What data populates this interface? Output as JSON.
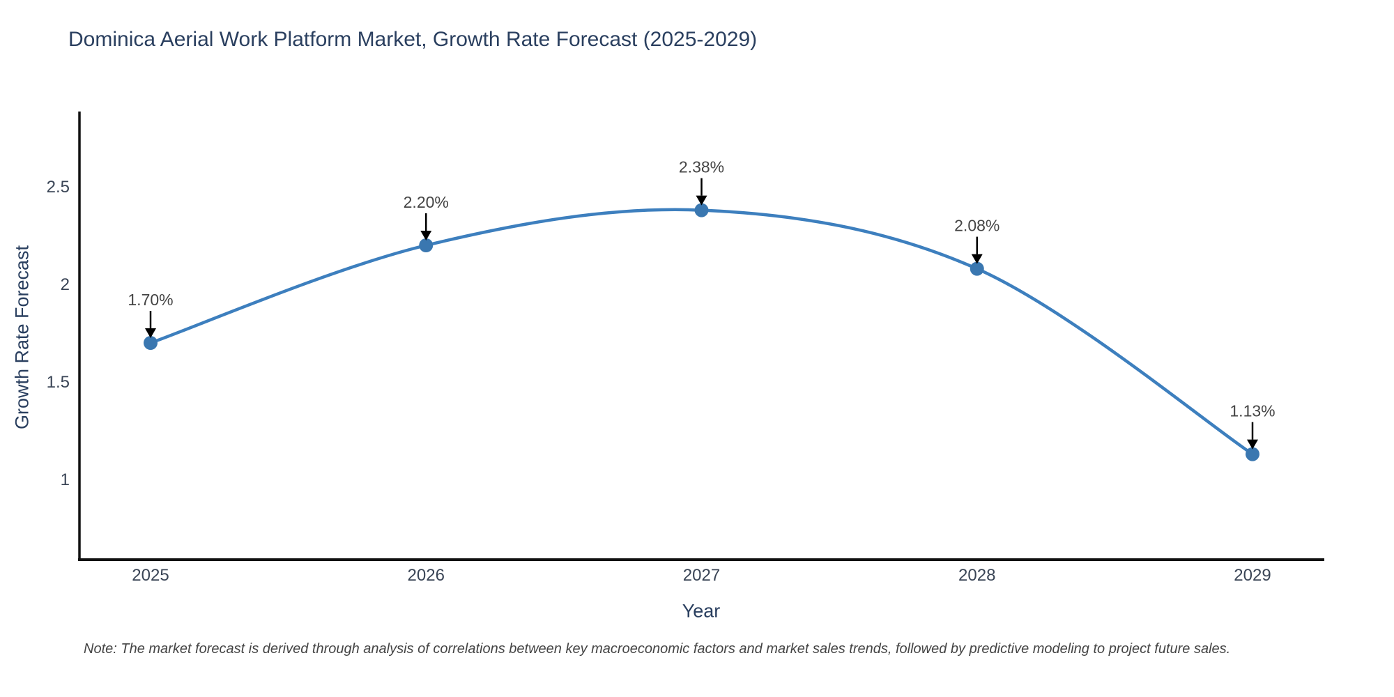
{
  "chart": {
    "title": "Dominica Aerial Work Platform Market, Growth Rate Forecast (2025-2029)",
    "note": "Note: The market forecast is derived through analysis of correlations between key macroeconomic factors and market sales trends, followed by predictive modeling to project future sales."
  },
  "chart_data": {
    "type": "line",
    "title": "Dominica Aerial Work Platform Market, Growth Rate Forecast (2025-2029)",
    "xlabel": "Year",
    "ylabel": "Growth Rate Forecast",
    "x": [
      2025,
      2026,
      2027,
      2028,
      2029
    ],
    "values": [
      1.7,
      2.2,
      2.38,
      2.08,
      1.13
    ],
    "point_labels": [
      "1.70%",
      "2.20%",
      "2.38%",
      "2.08%",
      "1.13%"
    ],
    "x_tick_labels": [
      "2025",
      "2026",
      "2027",
      "2028",
      "2029"
    ],
    "y_ticks": [
      1,
      1.5,
      2,
      2.5
    ],
    "y_tick_labels": [
      "1",
      "1.5",
      "2",
      "2.5"
    ],
    "ylim": [
      0.6,
      2.92
    ],
    "line_shape": "spline",
    "grid": false,
    "legend": "none",
    "colors": {
      "line": "#3d7fbe",
      "marker": "#3a77b0",
      "axis_line": "#111111",
      "tick_text": "#3a4556",
      "title_text": "#2a3f5f",
      "annotation_text": "#444444",
      "arrow": "#000000",
      "background": "#ffffff"
    }
  }
}
